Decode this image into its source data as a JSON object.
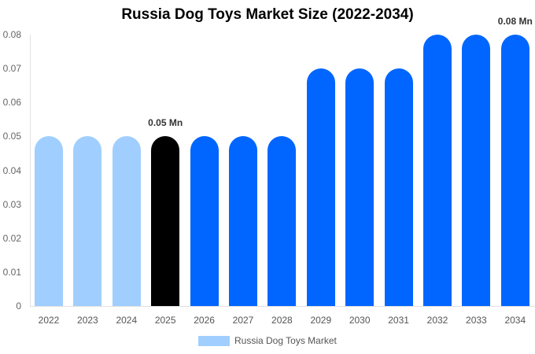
{
  "chart_data": {
    "type": "bar",
    "title": "Russia Dog Toys Market Size (2022-2034)",
    "xlabel": "",
    "ylabel": "",
    "categories": [
      "2022",
      "2023",
      "2024",
      "2025",
      "2026",
      "2027",
      "2028",
      "2029",
      "2030",
      "2031",
      "2032",
      "2033",
      "2034"
    ],
    "series": [
      {
        "name": "Russia Dog Toys Market",
        "values": [
          0.05,
          0.05,
          0.05,
          0.05,
          0.05,
          0.05,
          0.05,
          0.07,
          0.07,
          0.07,
          0.08,
          0.08,
          0.08
        ]
      }
    ],
    "bar_colors": [
      "#a0cfff",
      "#a0cfff",
      "#a0cfff",
      "#000000",
      "#0066ff",
      "#0066ff",
      "#0066ff",
      "#0066ff",
      "#0066ff",
      "#0066ff",
      "#0066ff",
      "#0066ff",
      "#0066ff"
    ],
    "ylim": [
      0,
      0.08
    ],
    "yticks": [
      "0",
      "0.01",
      "0.02",
      "0.03",
      "0.04",
      "0.05",
      "0.06",
      "0.07",
      "0.08"
    ],
    "grid": false,
    "legend_position": "bottom",
    "annotations": [
      {
        "category": "2025",
        "text": "0.05 Mn"
      },
      {
        "category": "2034",
        "text": "0.08 Mn"
      }
    ]
  },
  "colors": {
    "historical": "#a0cfff",
    "base_year": "#000000",
    "forecast": "#0066ff"
  }
}
